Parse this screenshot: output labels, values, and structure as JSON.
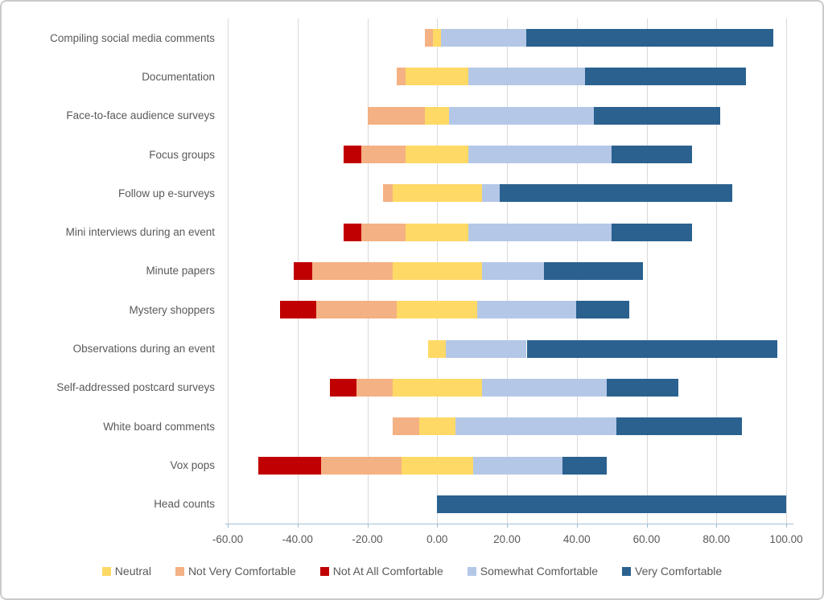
{
  "chart_data": {
    "type": "bar",
    "variant": "diverging-stacked-horizontal",
    "title": "",
    "xlabel": "",
    "ylabel": "",
    "grid": "vertical-gridlines-on",
    "axis": {
      "min": -60,
      "max": 100,
      "step": 20,
      "tick_labels": [
        "-60.00",
        "-40.00",
        "-20.00",
        "0.00",
        "20.00",
        "40.00",
        "60.00",
        "80.00",
        "100.00"
      ]
    },
    "stack_rule": "bar start = -(NotAtAll + NotVery + Neutral/2); segments left to right follow series order",
    "categories": [
      "Compiling social media comments",
      "Documentation",
      "Face-to-face audience surveys",
      "Focus groups",
      "Follow up e-surveys",
      "Mini interviews during an event",
      "Minute papers",
      "Mystery shoppers",
      "Observations during an event",
      "Self-addressed postcard surveys",
      "White board comments",
      "Vox pops",
      "Head counts"
    ],
    "series": [
      {
        "name": "Not At All Comfortable",
        "color": "#c00000",
        "values": [
          0,
          0,
          0,
          5.1,
          0,
          5.1,
          5.1,
          10.3,
          0,
          7.7,
          0,
          17.9,
          0
        ]
      },
      {
        "name": "Not Very Comfortable",
        "color": "#f4b183",
        "values": [
          2.4,
          2.6,
          16.3,
          12.8,
          2.6,
          12.8,
          23.1,
          23.1,
          0,
          10.3,
          7.7,
          23.1,
          0
        ]
      },
      {
        "name": "Neutral",
        "color": "#ffd966",
        "values": [
          2.4,
          18.0,
          7.0,
          17.9,
          25.6,
          17.9,
          25.6,
          23.1,
          5.1,
          25.6,
          10.3,
          20.5,
          0
        ]
      },
      {
        "name": "Somewhat Comfortable",
        "color": "#b4c7e7",
        "values": [
          24.4,
          33.3,
          41.5,
          41.0,
          5.1,
          41.0,
          17.9,
          28.2,
          23.1,
          35.9,
          46.2,
          25.6,
          0
        ]
      },
      {
        "name": "Very Comfortable",
        "color": "#2a618f",
        "values": [
          70.7,
          46.2,
          36.0,
          23.1,
          66.7,
          23.1,
          28.2,
          15.4,
          71.8,
          20.5,
          35.9,
          12.8,
          100
        ]
      }
    ],
    "legend_position": "bottom-center",
    "legend": [
      {
        "label": "Neutral",
        "color": "#ffd966"
      },
      {
        "label": "Not Very Comfortable",
        "color": "#f4b183"
      },
      {
        "label": "Not At All Comfortable",
        "color": "#c00000"
      },
      {
        "label": "Somewhat Comfortable",
        "color": "#b4c7e7"
      },
      {
        "label": "Very Comfortable",
        "color": "#2a618f"
      }
    ],
    "colors": {
      "gridline": "#d9d9d9",
      "axis_line": "#9fbfd3",
      "text": "#595959"
    }
  }
}
